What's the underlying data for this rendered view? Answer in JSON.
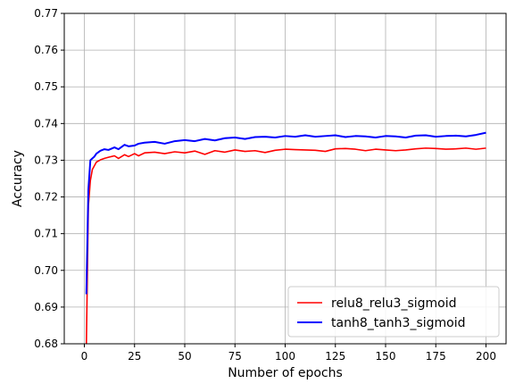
{
  "chart_data": {
    "type": "line",
    "title": "",
    "xlabel": "Number of epochs",
    "ylabel": "Accuracy",
    "xlim": [
      -10,
      210
    ],
    "ylim": [
      0.68,
      0.77
    ],
    "xticks": [
      0,
      25,
      50,
      75,
      100,
      125,
      150,
      175,
      200
    ],
    "yticks": [
      0.68,
      0.69,
      0.7,
      0.71,
      0.72,
      0.73,
      0.74,
      0.75,
      0.76,
      0.77
    ],
    "ytick_labels": [
      "0.68",
      "0.69",
      "0.70",
      "0.71",
      "0.72",
      "0.73",
      "0.74",
      "0.75",
      "0.76",
      "0.77"
    ],
    "grid": true,
    "legend_position": "lower-right",
    "series": [
      {
        "name": "relu8_relu3_sigmoid",
        "color": "#ff0000",
        "x": [
          1,
          2,
          3,
          4,
          5,
          6,
          7,
          8,
          10,
          12,
          15,
          17,
          20,
          22,
          25,
          27,
          30,
          35,
          40,
          45,
          50,
          55,
          60,
          65,
          70,
          75,
          80,
          85,
          90,
          95,
          100,
          105,
          110,
          115,
          120,
          125,
          130,
          135,
          140,
          145,
          150,
          155,
          160,
          165,
          170,
          175,
          180,
          185,
          190,
          195,
          200
        ],
        "values": [
          0.6795,
          0.7175,
          0.7245,
          0.7275,
          0.7285,
          0.7295,
          0.7298,
          0.7301,
          0.7305,
          0.7308,
          0.7312,
          0.7305,
          0.7315,
          0.731,
          0.7318,
          0.7312,
          0.732,
          0.7322,
          0.7318,
          0.7323,
          0.732,
          0.7325,
          0.7316,
          0.7326,
          0.7322,
          0.7328,
          0.7324,
          0.7326,
          0.7321,
          0.7327,
          0.733,
          0.7329,
          0.7328,
          0.7327,
          0.7324,
          0.7331,
          0.7332,
          0.733,
          0.7326,
          0.733,
          0.7328,
          0.7326,
          0.7328,
          0.7331,
          0.7333,
          0.7332,
          0.733,
          0.7331,
          0.7333,
          0.733,
          0.7333
        ]
      },
      {
        "name": "tanh8_tanh3_sigmoid",
        "color": "#0000ff",
        "x": [
          1,
          2,
          3,
          4,
          5,
          6,
          7,
          8,
          10,
          12,
          15,
          17,
          20,
          22,
          25,
          27,
          30,
          35,
          40,
          45,
          50,
          55,
          60,
          65,
          70,
          75,
          80,
          85,
          90,
          95,
          100,
          105,
          110,
          115,
          120,
          125,
          130,
          135,
          140,
          145,
          150,
          155,
          160,
          165,
          170,
          175,
          180,
          185,
          190,
          195,
          200
        ],
        "values": [
          0.6935,
          0.722,
          0.73,
          0.7305,
          0.731,
          0.7318,
          0.7322,
          0.7326,
          0.733,
          0.7328,
          0.7335,
          0.733,
          0.7342,
          0.7338,
          0.734,
          0.7345,
          0.7348,
          0.735,
          0.7345,
          0.7352,
          0.7355,
          0.7352,
          0.7358,
          0.7354,
          0.736,
          0.7362,
          0.7358,
          0.7363,
          0.7364,
          0.7362,
          0.7366,
          0.7364,
          0.7368,
          0.7364,
          0.7366,
          0.7368,
          0.7363,
          0.7366,
          0.7365,
          0.7362,
          0.7366,
          0.7365,
          0.7362,
          0.7367,
          0.7368,
          0.7364,
          0.7366,
          0.7367,
          0.7365,
          0.7369,
          0.7375
        ]
      }
    ]
  }
}
